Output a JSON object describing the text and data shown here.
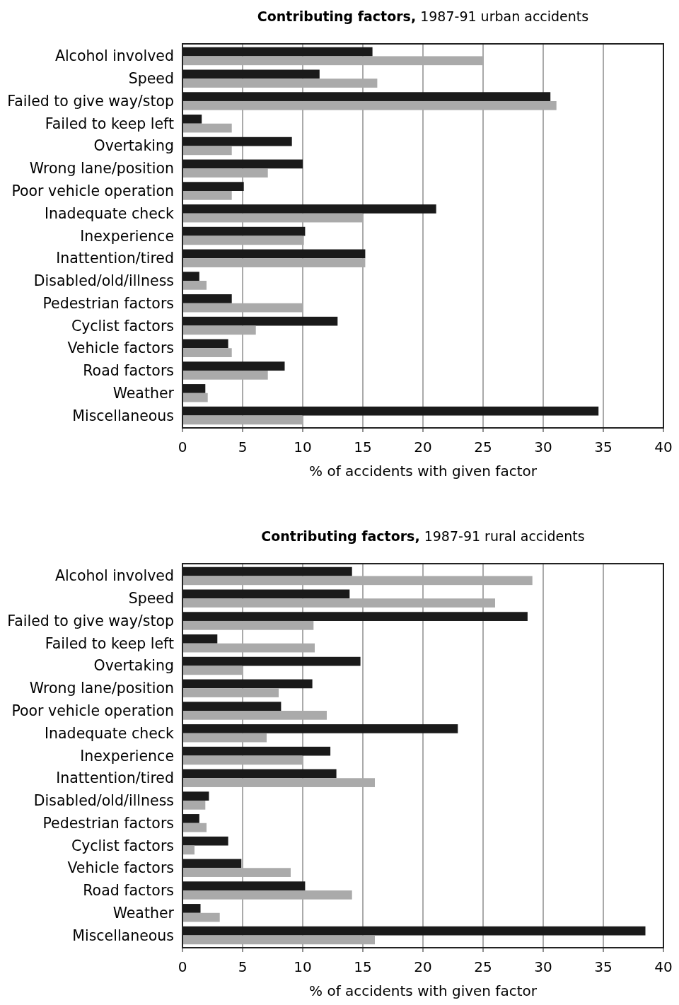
{
  "chart_data": [
    {
      "type": "bar",
      "orientation": "horizontal",
      "title": "Contributing factors, 1987-91 urban accidents",
      "xlabel": "% of accidents with given factor",
      "categories": [
        "Alcohol involved",
        "Speed",
        "Failed to give way/stop",
        "Failed to keep left",
        "Overtaking",
        "Wrong lane/position",
        "Poor vehicle operation",
        "Inadequate check",
        "Inexperience",
        "Inattention/tired",
        "Disabled/old/illness",
        "Pedestrian factors",
        "Cyclist factors",
        "Vehicle factors",
        "Road factors",
        "Weather",
        "Miscellaneous"
      ],
      "series": [
        {
          "color": "#1a1a1a",
          "values": [
            15.8,
            11.4,
            30.6,
            1.6,
            9.1,
            10,
            5.1,
            21.1,
            10.2,
            15.2,
            1.4,
            4.1,
            12.9,
            3.8,
            8.5,
            1.9,
            34.6
          ]
        },
        {
          "color": "#aaaaaa",
          "values": [
            25,
            16.2,
            31.1,
            4.1,
            4.1,
            7.1,
            4.1,
            15,
            10.1,
            15.2,
            2,
            10,
            6.1,
            4.1,
            7.1,
            2.1,
            10
          ]
        }
      ],
      "xlim": [
        0,
        40
      ],
      "xticks": [
        0,
        5,
        10,
        15,
        20,
        25,
        30,
        35,
        40
      ],
      "grid": "x"
    },
    {
      "type": "bar",
      "orientation": "horizontal",
      "title": "Contributing factors, 1987-91 rural accidents",
      "xlabel": "% of accidents with given factor",
      "categories": [
        "Alcohol involved",
        "Speed",
        "Failed to give way/stop",
        "Failed to keep left",
        "Overtaking",
        "Wrong lane/position",
        "Poor vehicle operation",
        "Inadequate check",
        "Inexperience",
        "Inattention/tired",
        "Disabled/old/illness",
        "Pedestrian factors",
        "Cyclist factors",
        "Vehicle factors",
        "Road factors",
        "Weather",
        "Miscellaneous"
      ],
      "series": [
        {
          "color": "#1a1a1a",
          "values": [
            14.1,
            13.9,
            28.7,
            2.9,
            14.8,
            10.8,
            8.2,
            22.9,
            12.3,
            12.8,
            2.2,
            1.4,
            3.8,
            4.9,
            10.2,
            1.5,
            38.5
          ]
        },
        {
          "color": "#aaaaaa",
          "values": [
            29.1,
            26,
            10.9,
            11,
            5,
            8,
            12,
            7,
            10,
            16,
            1.9,
            2,
            1,
            9,
            14.1,
            3.1,
            16
          ]
        }
      ],
      "xlim": [
        0,
        40
      ],
      "xticks": [
        0,
        5,
        10,
        15,
        20,
        25,
        30,
        35,
        40
      ],
      "grid": "x"
    }
  ]
}
